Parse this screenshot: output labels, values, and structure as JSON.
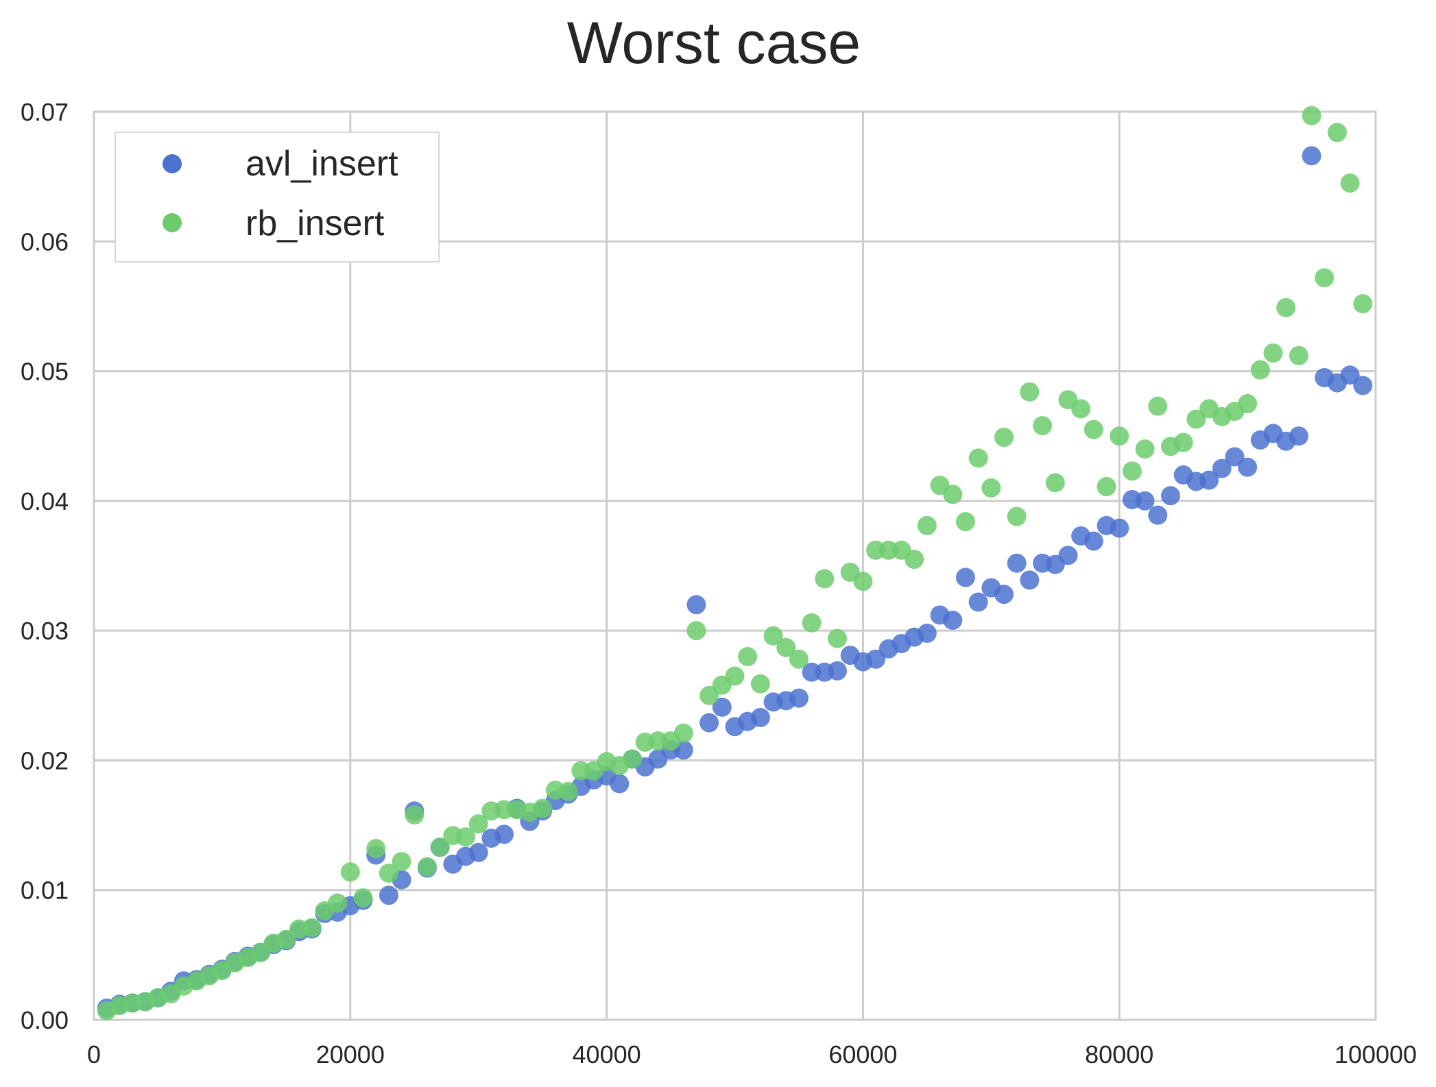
{
  "chart_data": {
    "type": "scatter",
    "title": "Worst case",
    "xlabel": "",
    "ylabel": "",
    "xlim": [
      0,
      100000
    ],
    "ylim": [
      0,
      0.07
    ],
    "xticks": [
      {
        "value": 0,
        "label": "0"
      },
      {
        "value": 20000,
        "label": "20000"
      },
      {
        "value": 40000,
        "label": "40000"
      },
      {
        "value": 60000,
        "label": "60000"
      },
      {
        "value": 80000,
        "label": "80000"
      },
      {
        "value": 100000,
        "label": "100000"
      }
    ],
    "yticks": [
      {
        "value": 0,
        "label": "0.00"
      },
      {
        "value": 0.01,
        "label": "0.01"
      },
      {
        "value": 0.02,
        "label": "0.02"
      },
      {
        "value": 0.03,
        "label": "0.03"
      },
      {
        "value": 0.04,
        "label": "0.04"
      },
      {
        "value": 0.05,
        "label": "0.05"
      },
      {
        "value": 0.06,
        "label": "0.06"
      },
      {
        "value": 0.07,
        "label": "0.07"
      }
    ],
    "grid": true,
    "legend_position": "top-left",
    "x": [
      1000,
      2000,
      3000,
      4000,
      5000,
      6000,
      7000,
      8000,
      9000,
      10000,
      11000,
      12000,
      13000,
      14000,
      15000,
      16000,
      17000,
      18000,
      19000,
      20000,
      21000,
      22000,
      23000,
      24000,
      25000,
      26000,
      27000,
      28000,
      29000,
      30000,
      31000,
      32000,
      33000,
      34000,
      35000,
      36000,
      37000,
      38000,
      39000,
      40000,
      41000,
      42000,
      43000,
      44000,
      45000,
      46000,
      47000,
      48000,
      49000,
      50000,
      51000,
      52000,
      53000,
      54000,
      55000,
      56000,
      57000,
      58000,
      59000,
      60000,
      61000,
      62000,
      63000,
      64000,
      65000,
      66000,
      67000,
      68000,
      69000,
      70000,
      71000,
      72000,
      73000,
      74000,
      75000,
      76000,
      77000,
      78000,
      79000,
      80000,
      81000,
      82000,
      83000,
      84000,
      85000,
      86000,
      87000,
      88000,
      89000,
      90000,
      91000,
      92000,
      93000,
      94000,
      95000,
      96000,
      97000,
      98000,
      99000
    ],
    "series": [
      {
        "name": "avl_insert",
        "color": "#4c72d0",
        "y": [
          0.0009,
          0.0012,
          0.0013,
          0.0014,
          0.0017,
          0.0022,
          0.003,
          0.0031,
          0.0035,
          0.0039,
          0.0045,
          0.0049,
          0.0052,
          0.0058,
          0.0061,
          0.0068,
          0.007,
          0.0082,
          0.0083,
          0.0088,
          0.0092,
          0.0127,
          0.0096,
          0.0108,
          0.0161,
          0.0117,
          0.0133,
          0.012,
          0.0126,
          0.0129,
          0.014,
          0.0143,
          0.0163,
          0.0153,
          0.0161,
          0.0169,
          0.0174,
          0.018,
          0.0185,
          0.0188,
          0.0182,
          0.0201,
          0.0195,
          0.0201,
          0.0208,
          0.0208,
          0.032,
          0.0229,
          0.0241,
          0.0226,
          0.023,
          0.0233,
          0.0245,
          0.0246,
          0.0248,
          0.0268,
          0.0268,
          0.0269,
          0.0281,
          0.0276,
          0.0278,
          0.0286,
          0.029,
          0.0295,
          0.0298,
          0.0312,
          0.0308,
          0.0341,
          0.0322,
          0.0333,
          0.0328,
          0.0352,
          0.0339,
          0.0352,
          0.0351,
          0.0358,
          0.0373,
          0.0369,
          0.0381,
          0.0379,
          0.0401,
          0.04,
          0.0389,
          0.0404,
          0.042,
          0.0415,
          0.0416,
          0.0425,
          0.0434,
          0.0426,
          0.0447,
          0.0452,
          0.0446,
          0.045,
          0.0666,
          0.0495,
          0.0491,
          0.0497,
          0.0489
        ]
      },
      {
        "name": "rb_insert",
        "color": "#6ccc6c",
        "y": [
          0.0007,
          0.0011,
          0.0013,
          0.0014,
          0.0017,
          0.002,
          0.0026,
          0.003,
          0.0034,
          0.0038,
          0.0044,
          0.0048,
          0.0052,
          0.0059,
          0.0062,
          0.007,
          0.0071,
          0.0084,
          0.009,
          0.0114,
          0.0094,
          0.0132,
          0.0113,
          0.0122,
          0.0158,
          0.0118,
          0.0133,
          0.0142,
          0.0141,
          0.0151,
          0.0161,
          0.0162,
          0.0162,
          0.016,
          0.0163,
          0.0177,
          0.0176,
          0.0192,
          0.0192,
          0.0199,
          0.0196,
          0.0201,
          0.0214,
          0.0215,
          0.0215,
          0.0221,
          0.03,
          0.025,
          0.0258,
          0.0265,
          0.028,
          0.0259,
          0.0296,
          0.0287,
          0.0278,
          0.0306,
          0.034,
          0.0294,
          0.0345,
          0.0338,
          0.0362,
          0.0362,
          0.0362,
          0.0355,
          0.0381,
          0.0412,
          0.0405,
          0.0384,
          0.0433,
          0.041,
          0.0449,
          0.0388,
          0.0484,
          0.0458,
          0.0414,
          0.0478,
          0.0471,
          0.0455,
          0.0411,
          0.045,
          0.0423,
          0.044,
          0.0473,
          0.0442,
          0.0445,
          0.0463,
          0.0471,
          0.0465,
          0.0469,
          0.0475,
          0.0501,
          0.0514,
          0.0549,
          0.0512,
          0.0697,
          0.0572,
          0.0684,
          0.0645,
          0.0552
        ]
      }
    ]
  }
}
